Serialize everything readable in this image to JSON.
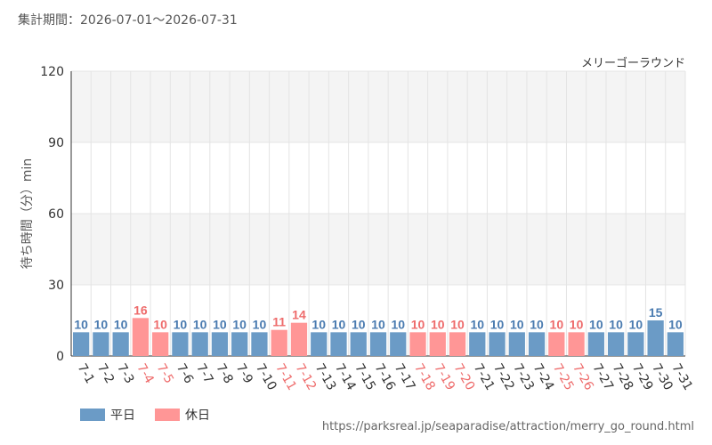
{
  "period_label": "集計期間：2026-07-01～2026-07-31",
  "attraction_name": "メリーゴーラウンド",
  "source_url": "https://parksreal.jp/seaparadise/attraction/merry_go_round.html",
  "legend": [
    {
      "label": "平日",
      "color": "#6b9bc6"
    },
    {
      "label": "休日",
      "color": "#ff9696"
    }
  ],
  "colors": {
    "weekday": "#6b9bc6",
    "holiday": "#ff9696",
    "weekday_label": "#4a7bb0",
    "holiday_label": "#ee6b6b",
    "band": "#f4f4f4",
    "grid": "#e4e4e4"
  },
  "chart_data": {
    "type": "bar",
    "ylabel": "待ち時間（分）min",
    "ylim": [
      0,
      120
    ],
    "yticks": [
      0,
      30,
      60,
      90,
      120
    ],
    "grid": true,
    "legend_position": "bottom-left",
    "categories": [
      "7-1",
      "7-2",
      "7-3",
      "7-4",
      "7-5",
      "7-6",
      "7-7",
      "7-8",
      "7-9",
      "7-10",
      "7-11",
      "7-12",
      "7-13",
      "7-14",
      "7-15",
      "7-16",
      "7-17",
      "7-18",
      "7-19",
      "7-20",
      "7-21",
      "7-22",
      "7-23",
      "7-24",
      "7-25",
      "7-26",
      "7-27",
      "7-28",
      "7-29",
      "7-30",
      "7-31"
    ],
    "values": [
      10,
      10,
      10,
      16,
      10,
      10,
      10,
      10,
      10,
      10,
      11,
      14,
      10,
      10,
      10,
      10,
      10,
      10,
      10,
      10,
      10,
      10,
      10,
      10,
      10,
      10,
      10,
      10,
      10,
      15,
      10
    ],
    "day_type": [
      "平日",
      "平日",
      "平日",
      "休日",
      "休日",
      "平日",
      "平日",
      "平日",
      "平日",
      "平日",
      "休日",
      "休日",
      "平日",
      "平日",
      "平日",
      "平日",
      "平日",
      "休日",
      "休日",
      "休日",
      "平日",
      "平日",
      "平日",
      "平日",
      "休日",
      "休日",
      "平日",
      "平日",
      "平日",
      "平日",
      "平日"
    ]
  }
}
